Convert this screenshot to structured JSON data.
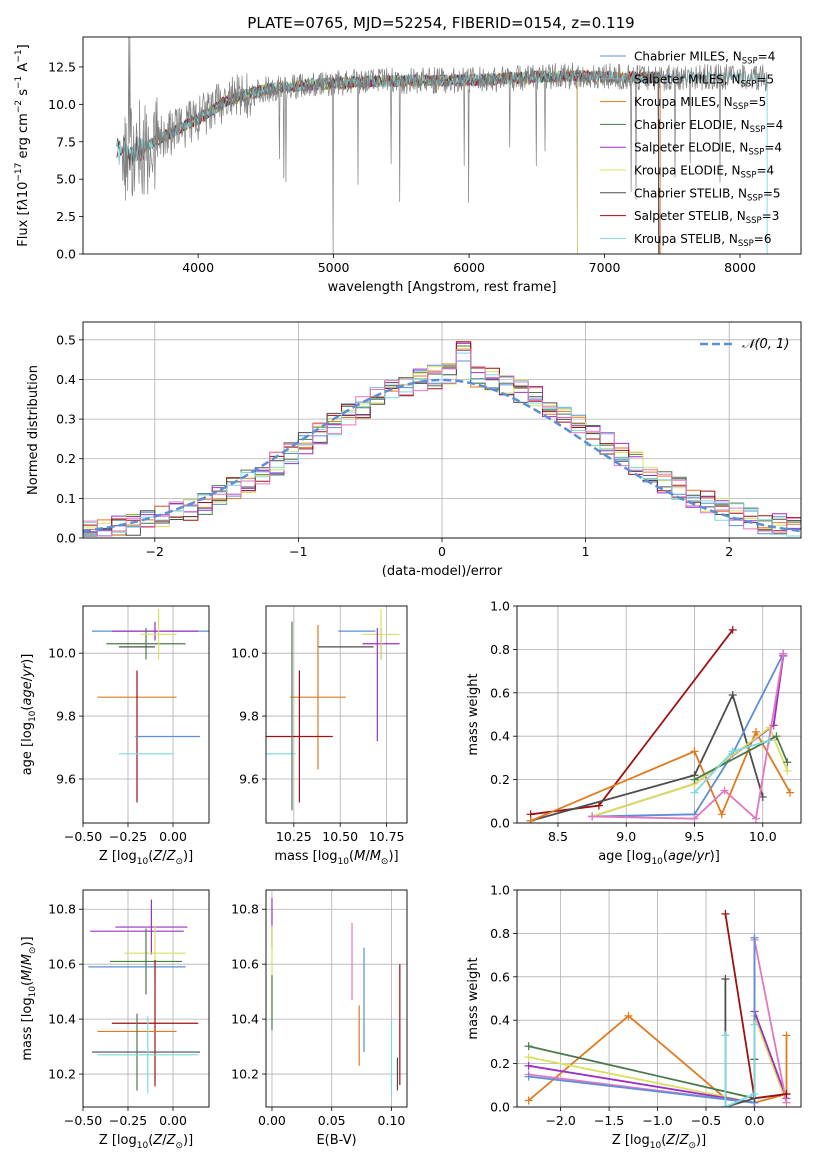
{
  "title": "PLATE=0765, MJD=52254, FIBERID=0154, z=0.119",
  "colors": {
    "Chabrier MILES": "#5b8fd6",
    "Salpeter MILES": "#a0a0a0",
    "Kroupa MILES": "#e07a1f",
    "Chabrier ELODIE": "#4c7a4c",
    "Salpeter ELODIE": "#9b30c8",
    "Kroupa ELODIE": "#d9e060",
    "Chabrier STELIB": "#4d4d4d",
    "Salpeter STELIB": "#a01010",
    "Kroupa STELIB": "#7fd8dc",
    "pink": "#e377c2",
    "normal": "#5b8fd6"
  },
  "chart_data": [
    {
      "id": "spectrum",
      "type": "line",
      "xlabel": "wavelength [Angstrom, rest frame]",
      "ylabel_html": "Flux [f<tspan font-style='italic'>λ</tspan>10<tspan dy='-6' font-size='9'>−17</tspan><tspan dy='6'> erg cm</tspan><tspan dy='-6' font-size='9'>−2</tspan><tspan dy='6'> s</tspan><tspan dy='-6' font-size='9'>−1</tspan><tspan dy='6'> A</tspan><tspan dy='-6' font-size='9'>−1</tspan><tspan dy='6'>]</tspan>",
      "xlim": [
        3150,
        8450
      ],
      "ylim": [
        0,
        14.5
      ],
      "xticks": [
        4000,
        5000,
        6000,
        7000,
        8000
      ],
      "yticks": [
        0.0,
        2.5,
        5.0,
        7.5,
        10.0,
        12.5
      ],
      "legend_position": "right",
      "legend": [
        {
          "name": "Chabrier MILES",
          "n": "4"
        },
        {
          "name": "Salpeter MILES",
          "n": "5"
        },
        {
          "name": "Kroupa MILES",
          "n": "5"
        },
        {
          "name": "Chabrier ELODIE",
          "n": "4"
        },
        {
          "name": "Salpeter ELODIE",
          "n": "4"
        },
        {
          "name": "Kroupa ELODIE",
          "n": "4"
        },
        {
          "name": "Chabrier STELIB",
          "n": "5"
        },
        {
          "name": "Salpeter STELIB",
          "n": "3"
        },
        {
          "name": "Kroupa STELIB",
          "n": "6"
        }
      ],
      "anchors": {
        "x": [
          3400,
          3500,
          3700,
          3900,
          4000,
          4200,
          4500,
          4800,
          5200,
          5600,
          6000,
          6400,
          6800,
          7200,
          7600,
          8000,
          8200
        ],
        "y": [
          7.0,
          6.6,
          7.6,
          8.6,
          9.0,
          10.2,
          11.0,
          11.3,
          11.5,
          11.6,
          11.6,
          11.8,
          11.9,
          11.8,
          11.8,
          11.8,
          11.8
        ]
      }
    },
    {
      "id": "residuals",
      "type": "histogram",
      "xlabel": "(data-model)/error",
      "ylabel": "Normed distribution",
      "xlim": [
        -2.5,
        2.5
      ],
      "ylim": [
        0,
        0.545
      ],
      "xticks": [
        -2,
        -1,
        0,
        1,
        2
      ],
      "yticks": [
        0.0,
        0.1,
        0.2,
        0.3,
        0.4,
        0.5
      ],
      "legend": "𝒩(0, 1)",
      "legend_position": "top-right",
      "bin_width": 0.1
    },
    {
      "id": "age-vs-Z",
      "type": "errorbar",
      "xlabel_html": "Z [log<tspan dy='4' font-size='9'>10</tspan><tspan dy='-4'>(</tspan><tspan font-style='italic'>Z</tspan>/<tspan font-style='italic'>Z</tspan><tspan dy='4' font-size='9'>⊙</tspan><tspan dy='-4'>)]</tspan>",
      "ylabel_html": "age  [log<tspan dy='4' font-size='9'>10</tspan><tspan dy='-4'>(</tspan><tspan font-style='italic'>age</tspan>/<tspan font-style='italic'>yr</tspan>)]",
      "xlim": [
        -0.5,
        0.2
      ],
      "ylim": [
        9.46,
        10.15
      ],
      "xticks": [
        "-0.50",
        "-0.25",
        "0.00"
      ],
      "xtick_values": [
        -0.5,
        -0.25,
        0.0
      ],
      "yticks": [
        "9.6",
        "9.8",
        "10.0"
      ],
      "ytick_values": [
        9.6,
        9.8,
        10.0
      ],
      "points": [
        {
          "c": "Chabrier MILES",
          "x": -0.12,
          "y": 10.07,
          "xe": 0.33,
          "ye": 0.0
        },
        {
          "c": "Kroupa MILES",
          "x": -0.2,
          "y": 9.86,
          "xe": 0.22,
          "ye": 0.0
        },
        {
          "c": "Salpeter ELODIE",
          "x": -0.1,
          "y": 10.07,
          "xe": 0.24,
          "ye": 0.03
        },
        {
          "c": "Chabrier ELODIE",
          "x": -0.15,
          "y": 10.03,
          "xe": 0.22,
          "ye": 0.05
        },
        {
          "c": "Kroupa ELODIE",
          "x": -0.08,
          "y": 10.06,
          "xe": 0.1,
          "ye": 0.08
        },
        {
          "c": "Chabrier STELIB",
          "x": -0.2,
          "y": 10.02,
          "xe": 0.1,
          "ye": 0.0
        },
        {
          "c": "Salpeter STELIB",
          "x": -0.2,
          "y": 9.735,
          "xe": 0.0,
          "ye": 0.21
        },
        {
          "c": "Chabrier MILES",
          "x": -0.03,
          "y": 9.735,
          "xe": 0.18,
          "ye": 0.0
        },
        {
          "c": "Kroupa STELIB",
          "x": -0.15,
          "y": 9.68,
          "xe": 0.15,
          "ye": 0.0
        }
      ]
    },
    {
      "id": "age-vs-mass",
      "type": "errorbar",
      "xlabel_html": "mass [log<tspan dy='4' font-size='9'>10</tspan><tspan dy='-4'>(</tspan><tspan font-style='italic'>M</tspan>/<tspan font-style='italic'>M</tspan><tspan dy='4' font-size='9'>⊙</tspan><tspan dy='-4'>)]</tspan>",
      "xlim": [
        10.1,
        10.86
      ],
      "ylim": [
        9.46,
        10.15
      ],
      "xticks": [
        "10.25",
        "10.50",
        "10.75"
      ],
      "xtick_values": [
        10.25,
        10.5,
        10.75
      ],
      "yticks": [
        "9.6",
        "9.8",
        "10.0"
      ],
      "ytick_values": [
        9.6,
        9.8,
        10.0
      ],
      "points": [
        {
          "c": "Salpeter ELODIE",
          "x": 10.72,
          "y": 10.03,
          "xe": 0.1,
          "ye": 0.05
        },
        {
          "c": "Chabrier STELIB",
          "x": 10.53,
          "y": 10.02,
          "xe": 0.15,
          "ye": 0.0
        },
        {
          "c": "Kroupa ELODIE",
          "x": 10.72,
          "y": 10.06,
          "xe": 0.1,
          "ye": 0.08
        },
        {
          "c": "Kroupa MILES",
          "x": 10.38,
          "y": 9.86,
          "xe": 0.15,
          "ye": 0.23
        },
        {
          "c": "Salpeter STELIB",
          "x": 10.28,
          "y": 9.735,
          "xe": 0.18,
          "ye": 0.21
        },
        {
          "c": "Kroupa STELIB",
          "x": 10.18,
          "y": 9.68,
          "xe": 0.08,
          "ye": 0.0
        },
        {
          "c": "Chabrier MILES",
          "x": 10.59,
          "y": 10.07,
          "xe": 0.1,
          "ye": 0.0
        },
        {
          "c": "Salpeter ELODIE",
          "x": 10.7,
          "y": 9.9,
          "xe": 0.0,
          "ye": 0.18
        },
        {
          "c": "Chabrier ELODIE",
          "x": 10.24,
          "y": 9.8,
          "xe": 0.0,
          "ye": 0.3
        }
      ]
    },
    {
      "id": "mass-weight-vs-age",
      "type": "line",
      "xlabel_html": "age  [log<tspan dy='4' font-size='9'>10</tspan><tspan dy='-4'>(</tspan><tspan font-style='italic'>age</tspan>/<tspan font-style='italic'>yr</tspan>)]",
      "ylabel": "mass weight",
      "xlim": [
        8.2,
        10.28
      ],
      "ylim": [
        0,
        1.0
      ],
      "xticks": [
        "8.5",
        "9.0",
        "9.5",
        "10.0"
      ],
      "xtick_values": [
        8.5,
        9.0,
        9.5,
        10.0
      ],
      "yticks": [
        "0.0",
        "0.2",
        "0.4",
        "0.6",
        "0.8",
        "1.0"
      ],
      "ytick_values": [
        0,
        0.2,
        0.4,
        0.6,
        0.8,
        1.0
      ],
      "series": [
        {
          "c": "Salpeter STELIB",
          "x": [
            8.3,
            8.8,
            9.78
          ],
          "y": [
            0.04,
            0.08,
            0.89
          ]
        },
        {
          "c": "Chabrier STELIB",
          "x": [
            8.3,
            9.5,
            9.78,
            10.0
          ],
          "y": [
            0.01,
            0.22,
            0.59,
            0.12
          ]
        },
        {
          "c": "Chabrier MILES",
          "x": [
            8.75,
            9.5,
            9.78,
            10.15
          ],
          "y": [
            0.03,
            0.04,
            0.32,
            0.78
          ]
        },
        {
          "c": "Kroupa MILES",
          "x": [
            8.3,
            9.5,
            9.7,
            9.95,
            10.2
          ],
          "y": [
            0.01,
            0.33,
            0.04,
            0.42,
            0.14
          ]
        },
        {
          "c": "Salpeter ELODIE",
          "x": [
            8.75,
            9.5,
            10.08,
            10.15
          ],
          "y": [
            0.03,
            0.18,
            0.45,
            0.77
          ]
        },
        {
          "c": "Kroupa ELODIE",
          "x": [
            8.75,
            9.5,
            10.05,
            10.18
          ],
          "y": [
            0.03,
            0.18,
            0.44,
            0.24
          ]
        },
        {
          "c": "Chabrier ELODIE",
          "x": [
            9.5,
            10.1,
            10.18
          ],
          "y": [
            0.2,
            0.4,
            0.28
          ]
        },
        {
          "c": "pink",
          "x": [
            8.75,
            9.5,
            9.72,
            9.95,
            10.15
          ],
          "y": [
            0.03,
            0.02,
            0.15,
            0.02,
            0.78
          ]
        },
        {
          "c": "Kroupa STELIB",
          "x": [
            9.5,
            9.78,
            10.05
          ],
          "y": [
            0.14,
            0.33,
            0.38
          ]
        }
      ]
    },
    {
      "id": "mass-vs-Z",
      "type": "errorbar",
      "xlabel_html": "Z [log<tspan dy='4' font-size='9'>10</tspan><tspan dy='-4'>(</tspan><tspan font-style='italic'>Z</tspan>/<tspan font-style='italic'>Z</tspan><tspan dy='4' font-size='9'>⊙</tspan><tspan dy='-4'>)]</tspan>",
      "ylabel_html": "mass [log<tspan dy='4' font-size='9'>10</tspan><tspan dy='-4'>(</tspan><tspan font-style='italic'>M</tspan>/<tspan font-style='italic'>M</tspan><tspan dy='4' font-size='9'>⊙</tspan><tspan dy='-4'>)]</tspan>",
      "xlim": [
        -0.5,
        0.2
      ],
      "ylim": [
        10.08,
        10.87
      ],
      "xticks": [
        "-0.50",
        "-0.25",
        "0.00"
      ],
      "xtick_values": [
        -0.5,
        -0.25,
        0.0
      ],
      "yticks": [
        "10.2",
        "10.4",
        "10.6",
        "10.8"
      ],
      "ytick_values": [
        10.2,
        10.4,
        10.6,
        10.8
      ],
      "points": [
        {
          "c": "Salpeter ELODIE",
          "x": -0.12,
          "y": 10.735,
          "xe": 0.2,
          "ye": 0.1
        },
        {
          "c": "Salpeter ELODIE",
          "x": -0.2,
          "y": 10.72,
          "xe": 0.26,
          "ye": 0.0
        },
        {
          "c": "Kroupa ELODIE",
          "x": -0.1,
          "y": 10.64,
          "xe": 0.17,
          "ye": 0.1
        },
        {
          "c": "Chabrier ELODIE",
          "x": -0.15,
          "y": 10.61,
          "xe": 0.2,
          "ye": 0.12
        },
        {
          "c": "Chabrier MILES",
          "x": -0.2,
          "y": 10.59,
          "xe": 0.27,
          "ye": 0.0
        },
        {
          "c": "Salpeter STELIB",
          "x": -0.1,
          "y": 10.385,
          "xe": 0.24,
          "ye": 0.23
        },
        {
          "c": "Kroupa MILES",
          "x": -0.2,
          "y": 10.355,
          "xe": 0.22,
          "ye": 0.0
        },
        {
          "c": "Chabrier STELIB",
          "x": -0.15,
          "y": 10.28,
          "xe": 0.3,
          "ye": 0.0
        },
        {
          "c": "Chabrier ELODIE",
          "x": -0.2,
          "y": 10.28,
          "xe": 0.0,
          "ye": 0.14
        },
        {
          "c": "Kroupa STELIB",
          "x": -0.14,
          "y": 10.27,
          "xe": 0.28,
          "ye": 0.14
        }
      ]
    },
    {
      "id": "mass-vs-EBV",
      "type": "errorbar",
      "xlabel": "E(B-V)",
      "xlim": [
        -0.005,
        0.113
      ],
      "ylim": [
        10.08,
        10.87
      ],
      "xticks": [
        "0.00",
        "0.05",
        "0.10"
      ],
      "xtick_values": [
        0.0,
        0.05,
        0.1
      ],
      "yticks": [
        "10.2",
        "10.4",
        "10.6",
        "10.8"
      ],
      "ytick_values": [
        10.2,
        10.4,
        10.6,
        10.8
      ],
      "points": [
        {
          "c": "Salpeter ELODIE",
          "x": 0.0,
          "y": 10.75,
          "xe": 0.0,
          "ye": 0.09
        },
        {
          "c": "Kroupa ELODIE",
          "x": 0.0,
          "y": 10.58,
          "xe": 0.0,
          "ye": 0.16
        },
        {
          "c": "Chabrier ELODIE",
          "x": 0.0,
          "y": 10.46,
          "xe": 0.0,
          "ye": 0.1
        },
        {
          "c": "pink",
          "x": 0.067,
          "y": 10.61,
          "xe": 0.0,
          "ye": 0.14
        },
        {
          "c": "Chabrier MILES",
          "x": 0.077,
          "y": 10.47,
          "xe": 0.0,
          "ye": 0.19
        },
        {
          "c": "Kroupa MILES",
          "x": 0.073,
          "y": 10.34,
          "xe": 0.0,
          "ye": 0.11
        },
        {
          "c": "Kroupa STELIB",
          "x": 0.1,
          "y": 10.26,
          "xe": 0.0,
          "ye": 0.14
        },
        {
          "c": "Salpeter STELIB",
          "x": 0.107,
          "y": 10.38,
          "xe": 0.0,
          "ye": 0.22
        },
        {
          "c": "Chabrier STELIB",
          "x": 0.105,
          "y": 10.2,
          "xe": 0.0,
          "ye": 0.06
        }
      ]
    },
    {
      "id": "mass-weight-vs-Z",
      "type": "line",
      "xlabel_html": "Z [log<tspan dy='4' font-size='9'>10</tspan><tspan dy='-4'>(</tspan><tspan font-style='italic'>Z</tspan>/<tspan font-style='italic'>Z</tspan><tspan dy='4' font-size='9'>⊙</tspan><tspan dy='-4'>)]</tspan>",
      "ylabel": "mass weight",
      "xlim": [
        -2.45,
        0.48
      ],
      "ylim": [
        0,
        1.0
      ],
      "xticks": [
        "-2.0",
        "-1.5",
        "-1.0",
        "-0.5",
        "0.0"
      ],
      "xtick_values": [
        -2.0,
        -1.5,
        -1.0,
        -0.5,
        0.0
      ],
      "yticks": [
        "0.0",
        "0.2",
        "0.4",
        "0.6",
        "0.8",
        "1.0"
      ],
      "ytick_values": [
        0,
        0.2,
        0.4,
        0.6,
        0.8,
        1.0
      ],
      "series": [
        {
          "c": "Kroupa MILES",
          "x": [
            -2.33,
            -1.3,
            -0.3,
            0.0,
            0.33,
            0.33
          ],
          "y": [
            0.03,
            0.42,
            0.04,
            0.02,
            0.06,
            0.33
          ]
        },
        {
          "c": "Chabrier ELODIE",
          "x": [
            -2.33,
            0.0,
            0.33
          ],
          "y": [
            0.28,
            0.04,
            0.06
          ]
        },
        {
          "c": "Kroupa ELODIE",
          "x": [
            -2.33,
            0.0,
            0.0,
            0.33
          ],
          "y": [
            0.23,
            0.02,
            0.42,
            0.02
          ]
        },
        {
          "c": "Salpeter ELODIE",
          "x": [
            -2.33,
            0.0,
            0.0,
            0.33
          ],
          "y": [
            0.19,
            0.02,
            0.44,
            0.04
          ]
        },
        {
          "c": "pink",
          "x": [
            -2.33,
            0.0,
            0.0,
            0.33
          ],
          "y": [
            0.15,
            0.02,
            0.77,
            0.02
          ]
        },
        {
          "c": "Chabrier MILES",
          "x": [
            -2.33,
            0.0,
            0.0
          ],
          "y": [
            0.14,
            0.02,
            0.78
          ]
        },
        {
          "c": "Salpeter STELIB",
          "x": [
            -0.3,
            0.0,
            0.33
          ],
          "y": [
            0.89,
            0.04,
            0.06
          ]
        },
        {
          "c": "Chabrier STELIB",
          "x": [
            -0.3,
            -0.3,
            0.0,
            0.0
          ],
          "y": [
            0.59,
            0.0,
            0.04,
            0.22
          ]
        },
        {
          "c": "Kroupa STELIB",
          "x": [
            -0.3,
            -0.3,
            0.0,
            0.0
          ],
          "y": [
            0.33,
            0.0,
            0.06,
            0.38
          ]
        }
      ]
    }
  ]
}
